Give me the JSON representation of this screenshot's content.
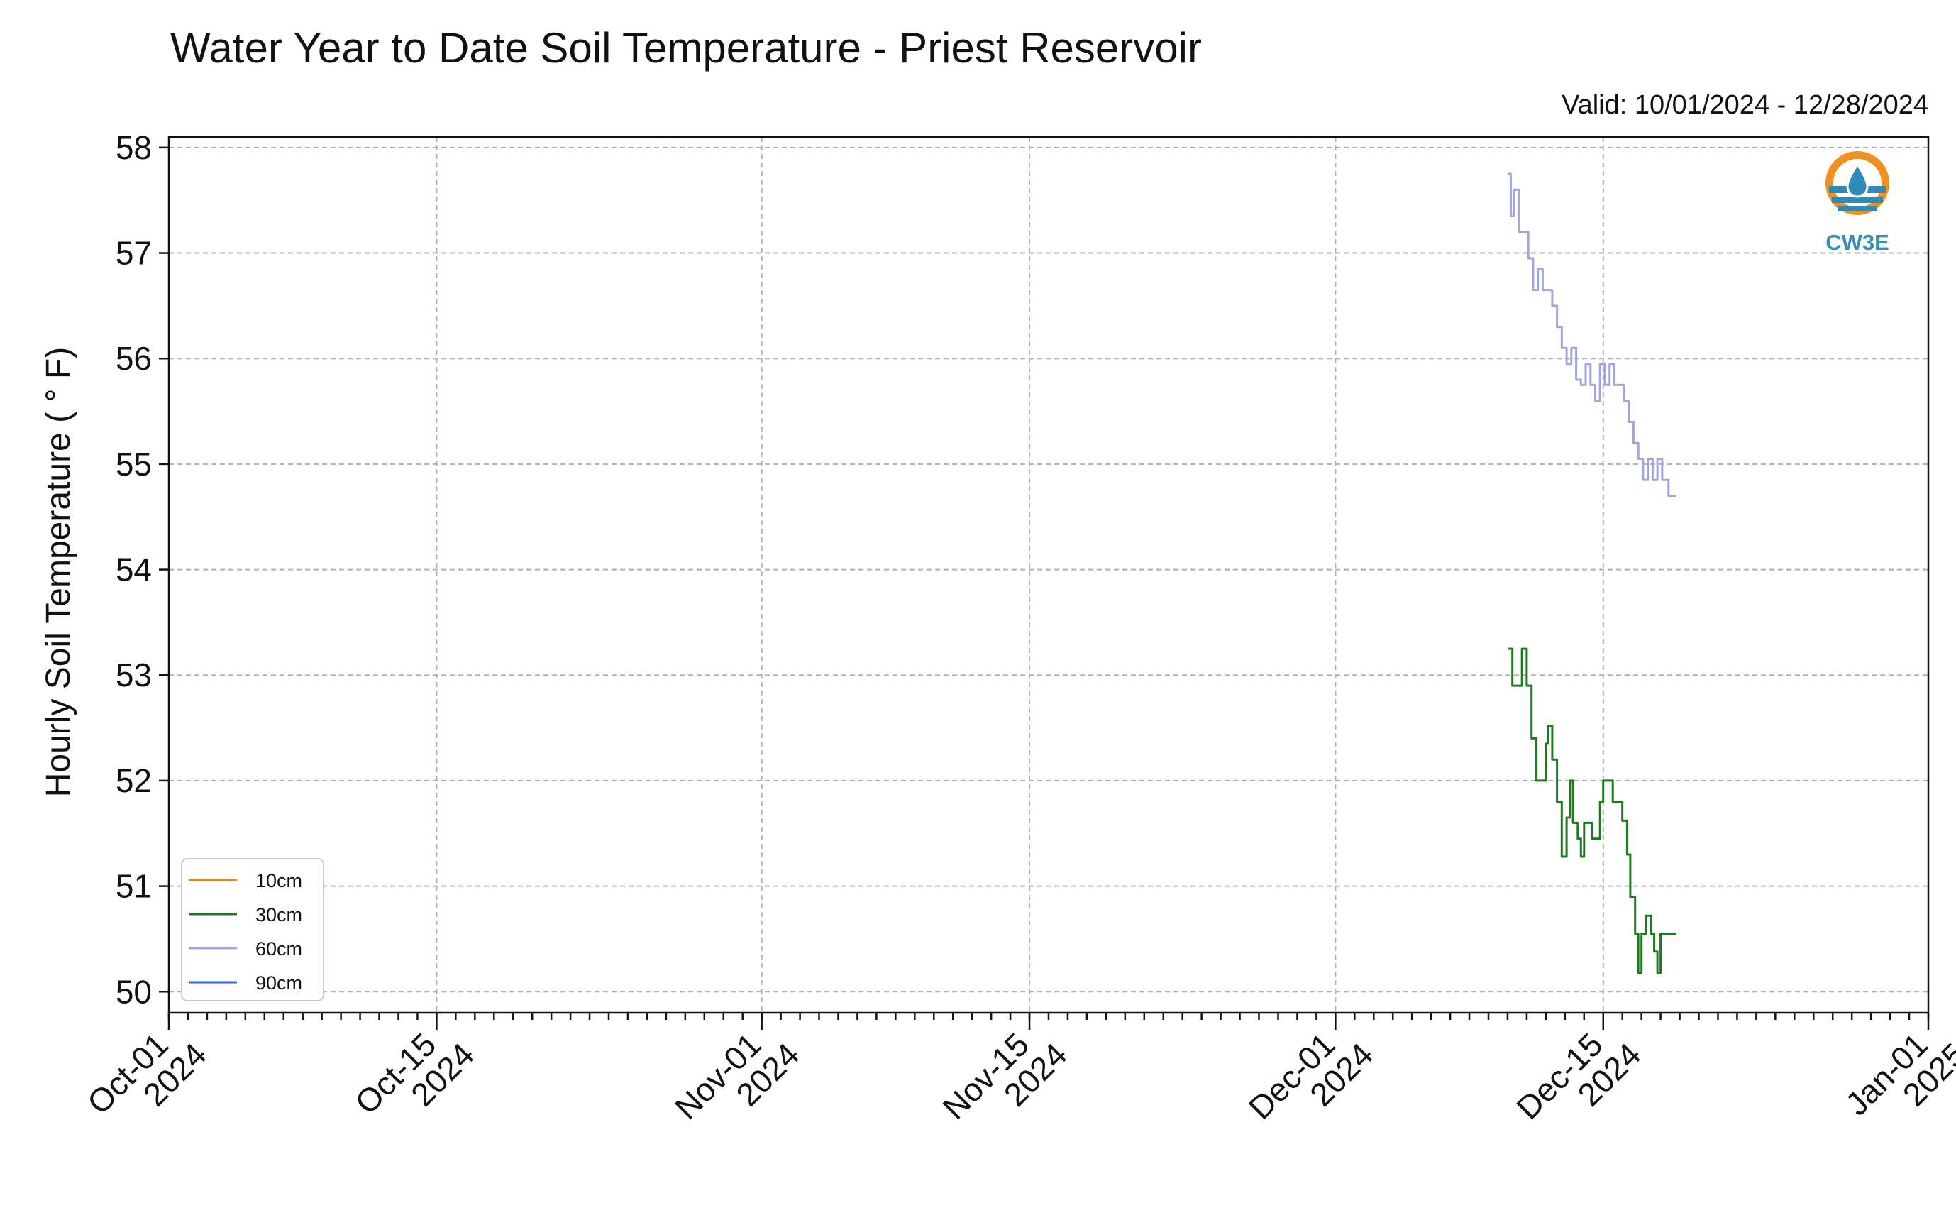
{
  "chart_data": {
    "type": "line",
    "title": "Water Year to Date Soil Temperature - Priest Reservoir",
    "subtitle": "Valid: 10/01/2024 - 12/28/2024",
    "ylabel": "Hourly Soil Temperature ( ° F)",
    "xlabel": "",
    "xlim": [
      "2024-10-01",
      "2025-01-01"
    ],
    "ylim": [
      49.8,
      58.1
    ],
    "yticks": [
      50,
      51,
      52,
      53,
      54,
      55,
      56,
      57,
      58
    ],
    "xticks": [
      {
        "date": "2024-10-01",
        "label": [
          "Oct-01",
          "2024"
        ]
      },
      {
        "date": "2024-10-15",
        "label": [
          "Oct-15",
          "2024"
        ]
      },
      {
        "date": "2024-11-01",
        "label": [
          "Nov-01",
          "2024"
        ]
      },
      {
        "date": "2024-11-15",
        "label": [
          "Nov-15",
          "2024"
        ]
      },
      {
        "date": "2024-12-01",
        "label": [
          "Dec-01",
          "2024"
        ]
      },
      {
        "date": "2024-12-15",
        "label": [
          "Dec-15",
          "2024"
        ]
      },
      {
        "date": "2025-01-01",
        "label": [
          "Jan-01",
          "2025"
        ]
      }
    ],
    "grid": true,
    "legend": "bottom-left",
    "series": [
      {
        "name": "10cm",
        "color": "#ff8000",
        "points": []
      },
      {
        "name": "30cm",
        "color": "#1f7a1f",
        "points": [
          [
            "2024-12-10T00:00",
            53.25
          ],
          [
            "2024-12-10T06:00",
            52.9
          ],
          [
            "2024-12-10T12:00",
            52.9
          ],
          [
            "2024-12-10T18:00",
            53.25
          ],
          [
            "2024-12-11T00:00",
            52.9
          ],
          [
            "2024-12-11T06:00",
            52.4
          ],
          [
            "2024-12-11T12:00",
            52.0
          ],
          [
            "2024-12-11T18:00",
            52.0
          ],
          [
            "2024-12-12T00:00",
            52.35
          ],
          [
            "2024-12-12T03:00",
            52.52
          ],
          [
            "2024-12-12T08:00",
            52.2
          ],
          [
            "2024-12-12T14:00",
            51.8
          ],
          [
            "2024-12-12T20:00",
            51.28
          ],
          [
            "2024-12-13T02:00",
            51.65
          ],
          [
            "2024-12-13T06:00",
            52.0
          ],
          [
            "2024-12-13T10:00",
            51.6
          ],
          [
            "2024-12-13T16:00",
            51.45
          ],
          [
            "2024-12-13T20:00",
            51.28
          ],
          [
            "2024-12-14T00:00",
            51.6
          ],
          [
            "2024-12-14T06:00",
            51.6
          ],
          [
            "2024-12-14T10:00",
            51.45
          ],
          [
            "2024-12-14T16:00",
            51.45
          ],
          [
            "2024-12-14T20:00",
            51.8
          ],
          [
            "2024-12-15T00:00",
            52.0
          ],
          [
            "2024-12-15T06:00",
            52.0
          ],
          [
            "2024-12-15T12:00",
            51.8
          ],
          [
            "2024-12-15T18:00",
            51.8
          ],
          [
            "2024-12-16T00:00",
            51.62
          ],
          [
            "2024-12-16T06:00",
            51.3
          ],
          [
            "2024-12-16T10:00",
            50.9
          ],
          [
            "2024-12-16T16:00",
            50.55
          ],
          [
            "2024-12-16T20:00",
            50.18
          ],
          [
            "2024-12-17T00:00",
            50.55
          ],
          [
            "2024-12-17T06:00",
            50.72
          ],
          [
            "2024-12-17T12:00",
            50.55
          ],
          [
            "2024-12-17T16:00",
            50.38
          ],
          [
            "2024-12-17T20:00",
            50.18
          ],
          [
            "2024-12-18T00:00",
            50.55
          ],
          [
            "2024-12-18T12:00",
            50.55
          ],
          [
            "2024-12-18T20:00",
            50.55
          ]
        ]
      },
      {
        "name": "60cm",
        "color": "#a0a6e0",
        "points": [
          [
            "2024-12-10T00:00",
            57.75
          ],
          [
            "2024-12-10T04:00",
            57.35
          ],
          [
            "2024-12-10T08:00",
            57.6
          ],
          [
            "2024-12-10T14:00",
            57.2
          ],
          [
            "2024-12-10T20:00",
            57.2
          ],
          [
            "2024-12-11T02:00",
            56.95
          ],
          [
            "2024-12-11T08:00",
            56.65
          ],
          [
            "2024-12-11T14:00",
            56.85
          ],
          [
            "2024-12-11T20:00",
            56.65
          ],
          [
            "2024-12-12T02:00",
            56.65
          ],
          [
            "2024-12-12T08:00",
            56.5
          ],
          [
            "2024-12-12T14:00",
            56.3
          ],
          [
            "2024-12-12T20:00",
            56.1
          ],
          [
            "2024-12-13T02:00",
            55.95
          ],
          [
            "2024-12-13T08:00",
            56.1
          ],
          [
            "2024-12-13T14:00",
            55.8
          ],
          [
            "2024-12-13T20:00",
            55.75
          ],
          [
            "2024-12-14T02:00",
            55.95
          ],
          [
            "2024-12-14T08:00",
            55.75
          ],
          [
            "2024-12-14T14:00",
            55.6
          ],
          [
            "2024-12-14T20:00",
            55.95
          ],
          [
            "2024-12-15T02:00",
            55.75
          ],
          [
            "2024-12-15T08:00",
            55.95
          ],
          [
            "2024-12-15T14:00",
            55.75
          ],
          [
            "2024-12-15T20:00",
            55.75
          ],
          [
            "2024-12-16T02:00",
            55.6
          ],
          [
            "2024-12-16T08:00",
            55.4
          ],
          [
            "2024-12-16T14:00",
            55.2
          ],
          [
            "2024-12-16T20:00",
            55.05
          ],
          [
            "2024-12-17T02:00",
            54.85
          ],
          [
            "2024-12-17T08:00",
            55.05
          ],
          [
            "2024-12-17T14:00",
            54.85
          ],
          [
            "2024-12-17T20:00",
            55.05
          ],
          [
            "2024-12-18T02:00",
            54.85
          ],
          [
            "2024-12-18T10:00",
            54.7
          ],
          [
            "2024-12-18T20:00",
            54.7
          ]
        ]
      },
      {
        "name": "90cm",
        "color": "#3366dd",
        "points": []
      }
    ]
  },
  "logo": {
    "text": "CW3E",
    "icon": "cw3e-water-drop-logo-icon",
    "colors": {
      "orange": "#f0901e",
      "blue": "#2f8ab5"
    }
  }
}
